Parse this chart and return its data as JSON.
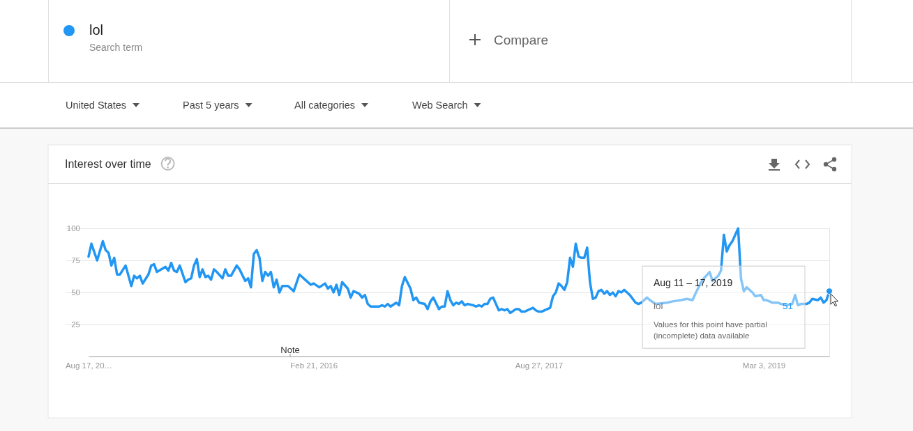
{
  "chart_data": {
    "type": "line",
    "title": "Interest over time",
    "legend": "top left",
    "grid": "y",
    "marker": "none",
    "line_style": "solid",
    "xlim": [
      "2014-08-17",
      "2019-08-11"
    ],
    "xticks": [
      {
        "value": "2014-08-17",
        "label": "Aug 17, 20…"
      },
      {
        "value": "2016-02-21",
        "label": "Feb 21, 2016"
      },
      {
        "value": "2017-08-27",
        "label": "Aug 27, 2017"
      },
      {
        "value": "2019-03-03",
        "label": "Mar 3, 2019"
      }
    ],
    "ylim": [
      0,
      100
    ],
    "yticks": [
      25,
      50,
      75,
      100
    ],
    "annotations": [
      "Search term",
      "Compare",
      "United States",
      "Past 5 years",
      "All categories",
      "Web Search",
      "Note",
      "Aug 11 – 17, 2019",
      "51",
      "Values for this point have partial (incomplete) data available"
    ],
    "series": [
      {
        "name": "lol",
        "color": "#2196f3",
        "x": [
          "2014-08-17",
          "2014-08-24",
          "2014-09-07",
          "2014-09-21",
          "2014-09-28",
          "2014-10-05",
          "2014-10-12",
          "2014-10-19",
          "2014-10-26",
          "2014-11-02",
          "2014-11-16",
          "2014-11-30",
          "2014-12-07",
          "2014-12-14",
          "2014-12-21",
          "2014-12-28",
          "2015-01-11",
          "2015-01-18",
          "2015-01-25",
          "2015-02-01",
          "2015-02-22",
          "2015-03-01",
          "2015-03-08",
          "2015-03-15",
          "2015-03-22",
          "2015-03-29",
          "2015-04-12",
          "2015-04-19",
          "2015-04-26",
          "2015-05-03",
          "2015-05-10",
          "2015-05-17",
          "2015-05-24",
          "2015-05-31",
          "2015-06-07",
          "2015-06-14",
          "2015-06-21",
          "2015-06-28",
          "2015-07-12",
          "2015-07-19",
          "2015-07-26",
          "2015-08-02",
          "2015-08-16",
          "2015-08-23",
          "2015-09-06",
          "2015-09-13",
          "2015-09-20",
          "2015-09-27",
          "2015-10-04",
          "2015-10-11",
          "2015-10-18",
          "2015-10-25",
          "2015-11-01",
          "2015-11-08",
          "2015-11-15",
          "2015-11-22",
          "2015-11-29",
          "2015-12-06",
          "2015-12-20",
          "2016-01-03",
          "2016-01-17",
          "2016-01-31",
          "2016-02-14",
          "2016-02-21",
          "2016-03-06",
          "2016-03-20",
          "2016-03-27",
          "2016-04-03",
          "2016-04-10",
          "2016-04-17",
          "2016-04-24",
          "2016-05-01",
          "2016-05-15",
          "2016-05-22",
          "2016-05-29",
          "2016-06-12",
          "2016-06-19",
          "2016-06-26",
          "2016-07-03",
          "2016-07-10",
          "2016-07-31",
          "2016-08-07",
          "2016-08-14",
          "2016-08-21",
          "2016-08-28",
          "2016-09-11",
          "2016-09-18",
          "2016-09-25",
          "2016-10-02",
          "2016-10-16",
          "2016-10-23",
          "2016-10-30",
          "2016-11-06",
          "2016-11-20",
          "2016-11-27",
          "2016-12-04",
          "2016-12-11",
          "2016-12-25",
          "2017-01-01",
          "2017-01-08",
          "2017-01-15",
          "2017-01-22",
          "2017-01-29",
          "2017-02-05",
          "2017-02-12",
          "2017-02-19",
          "2017-02-26",
          "2017-03-05",
          "2017-03-19",
          "2017-03-26",
          "2017-04-02",
          "2017-04-09",
          "2017-04-16",
          "2017-04-23",
          "2017-04-30",
          "2017-05-07",
          "2017-05-21",
          "2017-05-28",
          "2017-06-04",
          "2017-06-11",
          "2017-06-18",
          "2017-07-02",
          "2017-07-09",
          "2017-07-16",
          "2017-07-23",
          "2017-08-13",
          "2017-08-20",
          "2017-08-27",
          "2017-09-03",
          "2017-09-17",
          "2017-09-24",
          "2017-10-01",
          "2017-10-08",
          "2017-10-15",
          "2017-10-22",
          "2017-10-29",
          "2017-11-05",
          "2017-11-12",
          "2017-11-19",
          "2017-11-26",
          "2017-12-03",
          "2017-12-10",
          "2017-12-17",
          "2017-12-24",
          "2017-12-31",
          "2018-01-07",
          "2018-01-14",
          "2018-01-21",
          "2018-01-28",
          "2018-02-04",
          "2018-02-11",
          "2018-02-18",
          "2018-02-25",
          "2018-03-04",
          "2018-03-11",
          "2018-03-18",
          "2018-03-25",
          "2018-04-01",
          "2018-04-08",
          "2018-04-22",
          "2018-04-29",
          "2018-05-06",
          "2018-05-20",
          "2018-05-27",
          "2018-06-10",
          "2018-07-08",
          "2018-07-22",
          "2018-08-12",
          "2018-08-26",
          "2018-09-09",
          "2018-09-16",
          "2018-09-30",
          "2018-10-07",
          "2018-10-21",
          "2018-10-28",
          "2018-11-11",
          "2018-11-18",
          "2018-11-25",
          "2018-12-02",
          "2018-12-09",
          "2018-12-16",
          "2018-12-30",
          "2019-01-06",
          "2019-01-13",
          "2019-01-20",
          "2019-02-03",
          "2019-02-10",
          "2019-02-24",
          "2019-03-03",
          "2019-03-10",
          "2019-03-24",
          "2019-04-07",
          "2019-04-14",
          "2019-04-28",
          "2019-05-12",
          "2019-05-19",
          "2019-05-26",
          "2019-06-02",
          "2019-06-16",
          "2019-06-23",
          "2019-06-30",
          "2019-07-14",
          "2019-07-21",
          "2019-07-28",
          "2019-08-04",
          "2019-08-11"
        ],
        "values": [
          78,
          88,
          75,
          90,
          83,
          81,
          71,
          77,
          64,
          64,
          71,
          55,
          63,
          61,
          63,
          57,
          64,
          71,
          72,
          66,
          70,
          67,
          73,
          67,
          66,
          71,
          58,
          60,
          61,
          71,
          76,
          62,
          68,
          62,
          63,
          60,
          68,
          66,
          61,
          68,
          63,
          63,
          71,
          68,
          59,
          61,
          54,
          80,
          83,
          77,
          59,
          66,
          63,
          66,
          54,
          60,
          50,
          55,
          55,
          51,
          64,
          60,
          56,
          57,
          54,
          57,
          53,
          55,
          50,
          56,
          48,
          58,
          53,
          46,
          51,
          49,
          46,
          48,
          41,
          39,
          39,
          40,
          39,
          41,
          39,
          42,
          40,
          55,
          62,
          53,
          44,
          46,
          42,
          41,
          37,
          43,
          46,
          37,
          39,
          39,
          51,
          44,
          40,
          42,
          41,
          43,
          40,
          41,
          40,
          39,
          40,
          39,
          41,
          41,
          45,
          46,
          36,
          37,
          36,
          37,
          34,
          37,
          37,
          35,
          35,
          38,
          36,
          35,
          35,
          37,
          38,
          47,
          50,
          57,
          55,
          52,
          58,
          77,
          70,
          88,
          78,
          77,
          77,
          85,
          58,
          45,
          46,
          51,
          52,
          49,
          51,
          48,
          50,
          47,
          51,
          50,
          52,
          50,
          48,
          42,
          41,
          42,
          46,
          44,
          41,
          42,
          43,
          44,
          45,
          44,
          49,
          58,
          61,
          66,
          59,
          63,
          67,
          95,
          82,
          87,
          90,
          100,
          61,
          51,
          54,
          50,
          47,
          48,
          44,
          44,
          42,
          42,
          41,
          40,
          41,
          48,
          40,
          41,
          41,
          42,
          45,
          44,
          46,
          42,
          44,
          51
        ]
      }
    ]
  }
}
